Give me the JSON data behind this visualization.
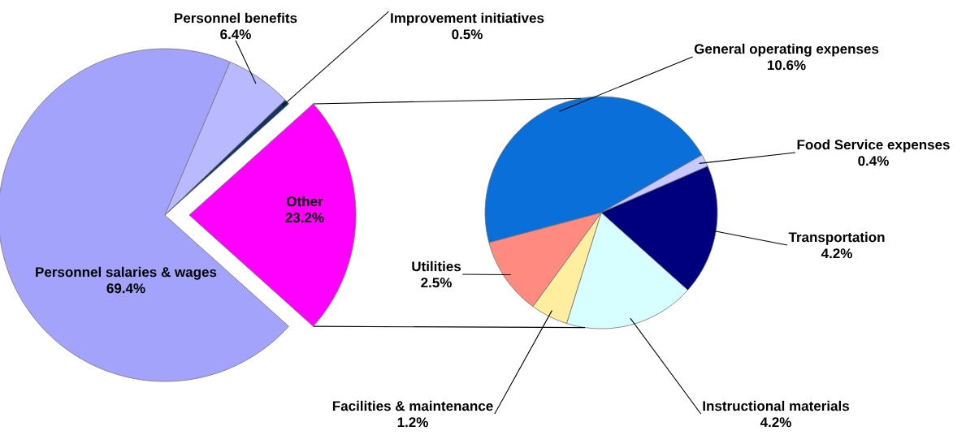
{
  "chart_data": [
    {
      "type": "pie",
      "categories": [
        "Personnel salaries & wages",
        "Personnel benefits",
        "Improvement initiatives",
        "Other"
      ],
      "values": [
        69.4,
        6.4,
        0.5,
        23.2
      ],
      "value_labels": [
        "69.4%",
        "6.4%",
        "0.5%",
        "23.2%"
      ],
      "colors": [
        "#a3a3fc",
        "#b9b9ff",
        "#17335f",
        "#ff00ff"
      ]
    },
    {
      "type": "pie",
      "categories": [
        "General operating expenses",
        "Food Service expenses",
        "Transportation",
        "Instructional materials",
        "Facilities & maintenance",
        "Utilities"
      ],
      "values": [
        10.6,
        0.4,
        4.2,
        4.2,
        1.2,
        2.5
      ],
      "value_labels": [
        "10.6%",
        "0.4%",
        "4.2%",
        "4.2%",
        "1.2%",
        "2.5%"
      ],
      "colors": [
        "#0a6fd8",
        "#c8c8ff",
        "#00007f",
        "#d8ffff",
        "#ffee9f",
        "#ff8a80"
      ]
    }
  ]
}
